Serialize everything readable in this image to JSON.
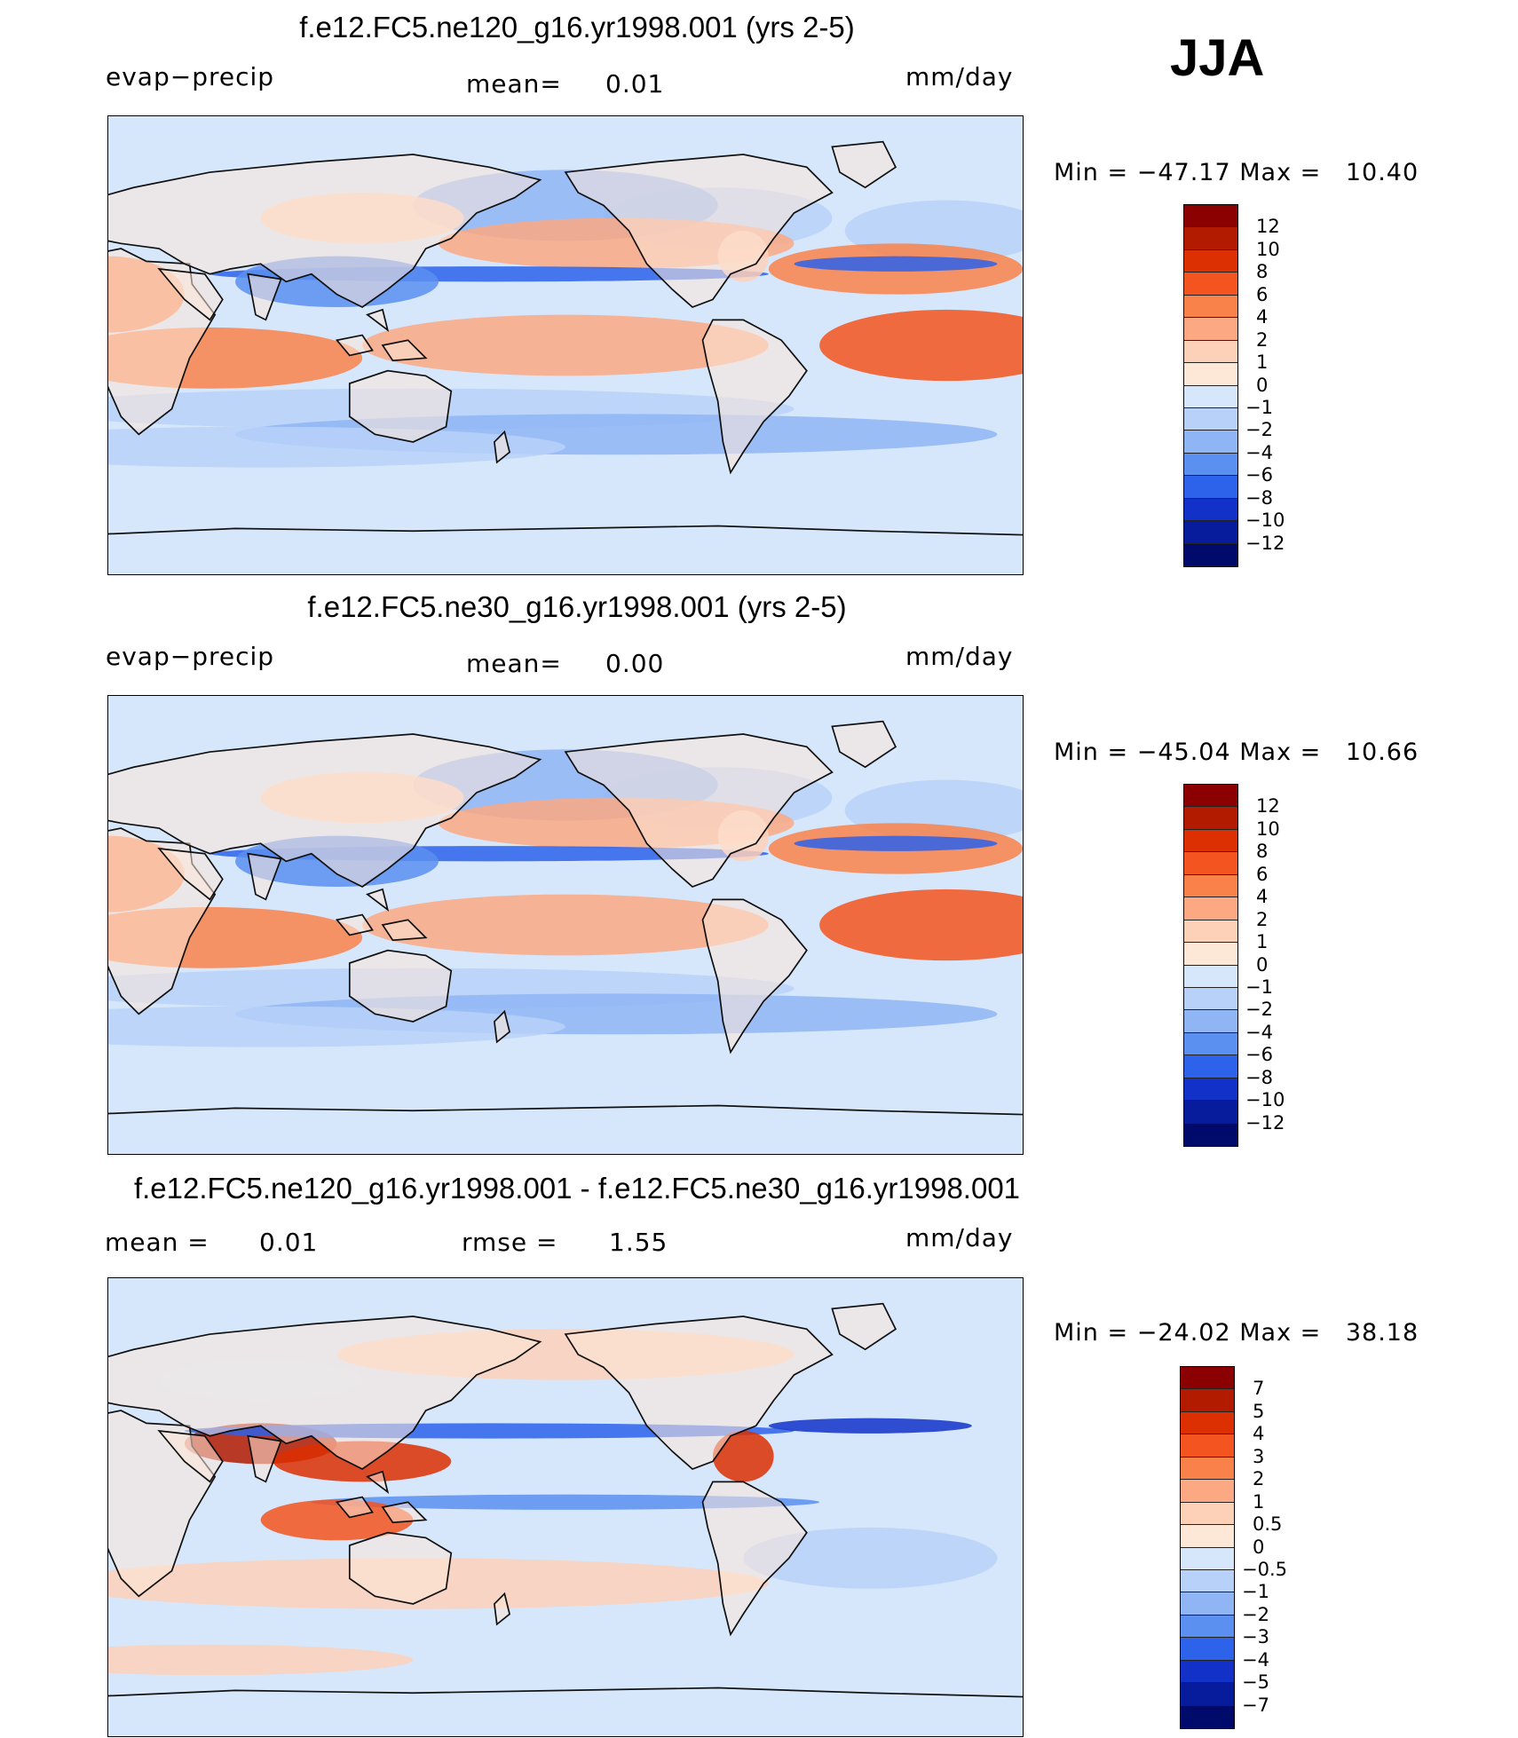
{
  "season": "JJA",
  "colors": {
    "ocean_neutral": "#d6e7fb",
    "land_neutral": "#fde8d8",
    "coast": "#111111"
  },
  "panels": [
    {
      "title": "f.e12.FC5.ne120_g16.yr1998.001 (yrs 2-5)",
      "left_label": "evap−precip",
      "mid_label": "mean=",
      "mid_value": "0.01",
      "extra_label": "",
      "extra_value": "",
      "units": "mm/day",
      "min_label": "Min",
      "min_value": "−47.17",
      "max_label": "Max",
      "max_value": "10.40",
      "levels": [
        "12",
        "10",
        "8",
        "6",
        "4",
        "2",
        "1",
        "0",
        "−1",
        "−2",
        "−4",
        "−6",
        "−8",
        "−10",
        "−12"
      ],
      "colors": [
        "#8b0000",
        "#b31b00",
        "#dc2f02",
        "#f4541f",
        "#f9814a",
        "#fca883",
        "#fdd0b8",
        "#fde8d8",
        "#d6e7fb",
        "#b7d1f8",
        "#8fb5f4",
        "#5b8ff0",
        "#2d62ea",
        "#1131c8",
        "#061c9c",
        "#000a6b"
      ]
    },
    {
      "title": "f.e12.FC5.ne30_g16.yr1998.001 (yrs 2-5)",
      "left_label": "evap−precip",
      "mid_label": "mean=",
      "mid_value": "0.00",
      "extra_label": "",
      "extra_value": "",
      "units": "mm/day",
      "min_label": "Min",
      "min_value": "−45.04",
      "max_label": "Max",
      "max_value": "10.66",
      "levels": [
        "12",
        "10",
        "8",
        "6",
        "4",
        "2",
        "1",
        "0",
        "−1",
        "−2",
        "−4",
        "−6",
        "−8",
        "−10",
        "−12"
      ],
      "colors": [
        "#8b0000",
        "#b31b00",
        "#dc2f02",
        "#f4541f",
        "#f9814a",
        "#fca883",
        "#fdd0b8",
        "#fde8d8",
        "#d6e7fb",
        "#b7d1f8",
        "#8fb5f4",
        "#5b8ff0",
        "#2d62ea",
        "#1131c8",
        "#061c9c",
        "#000a6b"
      ]
    },
    {
      "title": "f.e12.FC5.ne120_g16.yr1998.001 - f.e12.FC5.ne30_g16.yr1998.001",
      "left_label": "mean =",
      "mid_label": "0.01",
      "mid_value": "",
      "extra_label": "rmse =",
      "extra_value": "1.55",
      "units": "mm/day",
      "min_label": "Min",
      "min_value": "−24.02",
      "max_label": "Max",
      "max_value": "38.18",
      "levels": [
        "7",
        "5",
        "4",
        "3",
        "2",
        "1",
        "0.5",
        "0",
        "−0.5",
        "−1",
        "−2",
        "−3",
        "−4",
        "−5",
        "−7"
      ],
      "colors": [
        "#8b0000",
        "#b31b00",
        "#dc2f02",
        "#f4541f",
        "#f9814a",
        "#fca883",
        "#fdd0b8",
        "#fde8d8",
        "#d6e7fb",
        "#b7d1f8",
        "#8fb5f4",
        "#5b8ff0",
        "#2d62ea",
        "#1131c8",
        "#061c9c",
        "#000a6b"
      ]
    }
  ]
}
